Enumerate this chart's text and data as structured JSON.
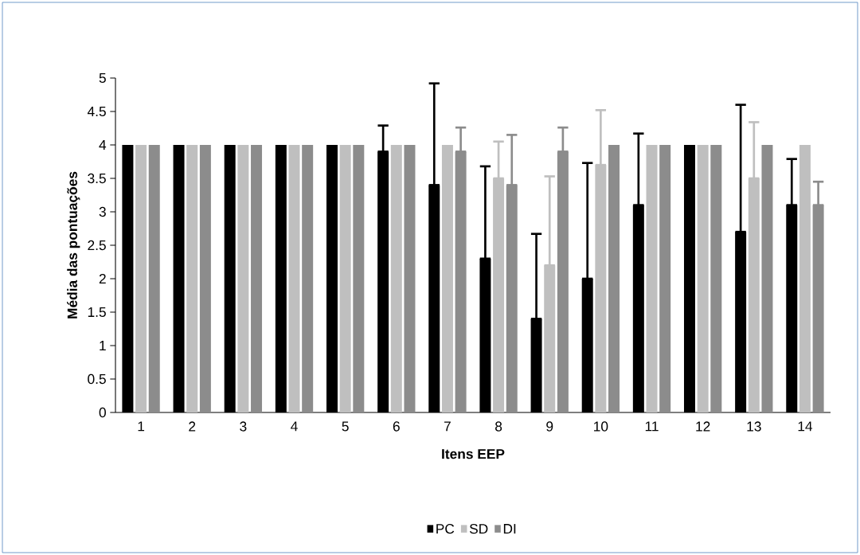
{
  "chart_data": {
    "type": "bar",
    "xlabel": "Itens EEP",
    "ylabel": "Média das pontuações",
    "categories": [
      "1",
      "2",
      "3",
      "4",
      "5",
      "6",
      "7",
      "8",
      "9",
      "10",
      "11",
      "12",
      "13",
      "14"
    ],
    "series": [
      {
        "name": "PC",
        "color": "#000000",
        "values": [
          4,
          4,
          4,
          4,
          4,
          3.9,
          3.4,
          2.3,
          1.4,
          2.0,
          3.1,
          4,
          2.7,
          3.1
        ],
        "errors": [
          null,
          null,
          null,
          null,
          null,
          [
            3.9,
            4.29
          ],
          [
            3.4,
            4.92
          ],
          [
            2.3,
            3.68
          ],
          [
            1.4,
            2.67
          ],
          [
            2.0,
            3.73
          ],
          [
            3.1,
            4.17
          ],
          null,
          [
            2.7,
            4.6
          ],
          [
            3.1,
            3.79
          ]
        ]
      },
      {
        "name": "SD",
        "color": "#bfbfbf",
        "values": [
          4,
          4,
          4,
          4,
          4,
          4,
          4,
          3.5,
          2.2,
          3.7,
          4,
          4,
          3.5,
          4
        ],
        "errors": [
          null,
          null,
          null,
          null,
          null,
          null,
          null,
          [
            3.5,
            4.05
          ],
          [
            2.2,
            3.53
          ],
          [
            3.7,
            4.52
          ],
          null,
          null,
          [
            3.5,
            4.34
          ],
          null
        ]
      },
      {
        "name": "DI",
        "color": "#8c8c8c",
        "values": [
          4,
          4,
          4,
          4,
          4,
          4,
          3.9,
          3.4,
          3.9,
          4,
          4,
          4,
          4,
          3.1
        ],
        "errors": [
          null,
          null,
          null,
          null,
          null,
          null,
          [
            3.9,
            4.26
          ],
          [
            3.4,
            4.15
          ],
          [
            3.9,
            4.26
          ],
          null,
          null,
          null,
          null,
          [
            3.1,
            3.45
          ]
        ]
      }
    ],
    "ylim": [
      0,
      5
    ],
    "yticks": [
      0,
      0.5,
      1,
      1.5,
      2,
      2.5,
      3,
      3.5,
      4,
      4.5,
      5
    ],
    "grid": false,
    "legend": "bottom"
  }
}
